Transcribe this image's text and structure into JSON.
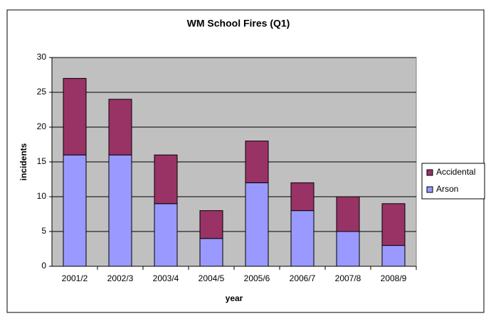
{
  "chart_data": {
    "type": "stacked_bar",
    "title": "WM School Fires (Q1)",
    "x_label": "year",
    "y_label": "incidents",
    "categories": [
      "2001/2",
      "2002/3",
      "2003/4",
      "2004/5",
      "2005/6",
      "2006/7",
      "2007/8",
      "2008/9"
    ],
    "series": [
      {
        "name": "Arson",
        "color": "#9999ff",
        "values": [
          16,
          16,
          9,
          4,
          12,
          8,
          5,
          3
        ]
      },
      {
        "name": "Accidental",
        "color": "#993366",
        "values": [
          11,
          8,
          7,
          4,
          6,
          4,
          5,
          6
        ]
      }
    ],
    "ylim": [
      0,
      30
    ],
    "yticks": [
      0,
      5,
      10,
      15,
      20,
      25,
      30
    ],
    "grid": true,
    "legend": "right"
  }
}
